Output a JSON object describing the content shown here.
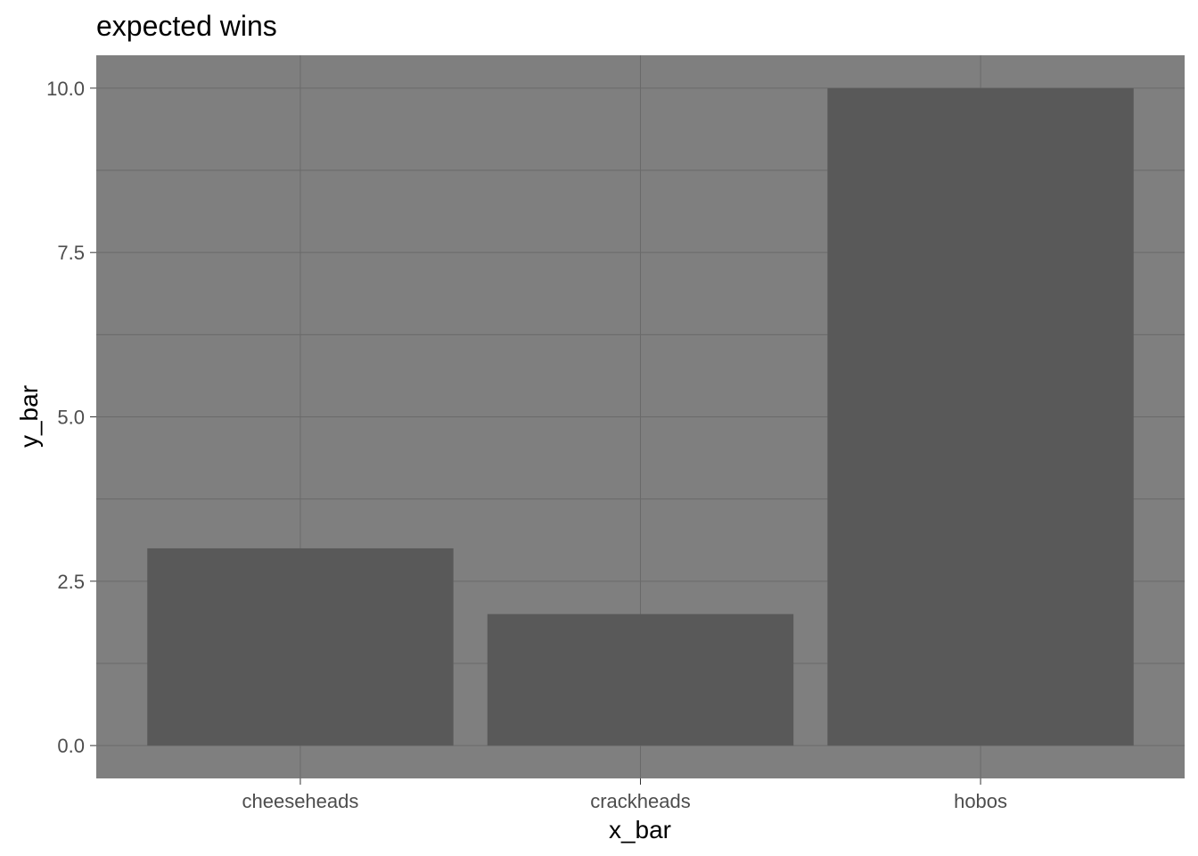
{
  "chart_data": {
    "type": "bar",
    "title": "expected wins",
    "xlabel": "x_bar",
    "ylabel": "y_bar",
    "categories": [
      "cheeseheads",
      "crackheads",
      "hobos"
    ],
    "values": [
      3,
      2,
      10
    ],
    "ylim": [
      -0.5,
      10.5
    ],
    "y_ticks": [
      0,
      2.5,
      5,
      7.5,
      10
    ],
    "y_tick_labels": [
      "0.0",
      "2.5",
      "5.0",
      "7.5",
      "10.0"
    ],
    "y_minor_ticks": [
      1.25,
      3.75,
      6.25,
      8.75
    ],
    "grid": true,
    "legend": "none",
    "colors": {
      "panel_background": "#7f7f7f",
      "grid_line": "#6a6a6a",
      "bar_fill": "#595959",
      "tick_text": "#4d4d4d",
      "title_text": "#000000"
    }
  }
}
